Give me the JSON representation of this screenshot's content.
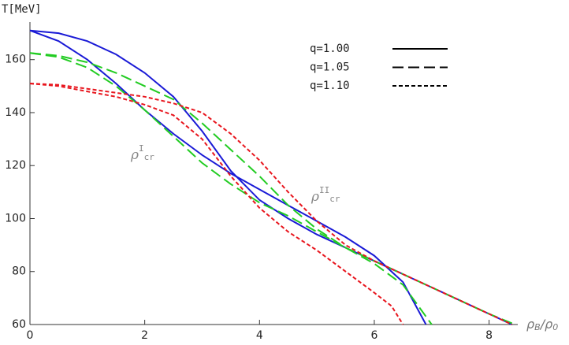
{
  "chart_data": {
    "type": "line",
    "y_label": "T[MeV]",
    "x_label": {
      "base": "ρ",
      "sub": "B",
      "mid": "/ρ",
      "sub2": "0"
    },
    "xlim": [
      0,
      8.5
    ],
    "ylim": [
      60,
      173
    ],
    "xticks": [
      0,
      2,
      4,
      6,
      8
    ],
    "yticks": [
      60,
      80,
      100,
      120,
      140,
      160
    ],
    "legend_color": "#000000",
    "annotations": [
      {
        "base": "ρ",
        "sup": "I",
        "sub": "cr"
      },
      {
        "base": "ρ",
        "sup": "II",
        "sub": "cr"
      }
    ],
    "series": [
      {
        "name": "q=1.00",
        "color": "#1a1ad6",
        "dash": "solid",
        "lines": [
          {
            "x": [
              0,
              0.5,
              1,
              1.5,
              2,
              2.5,
              3,
              3.5,
              4,
              4.5,
              5,
              5.5,
              6,
              6.5,
              6.9
            ],
            "values": [
              171,
              167,
              160,
              151,
              141,
              132,
              124,
              117,
              111,
              105,
              99,
              93,
              86,
              76,
              60
            ]
          },
          {
            "x": [
              0,
              0.5,
              1,
              1.5,
              2,
              2.5,
              3,
              3.5,
              4,
              4.5,
              5,
              5.5,
              6,
              6.5,
              7,
              7.5,
              8,
              8.4
            ],
            "values": [
              171,
              170,
              167,
              162,
              155,
              146,
              133,
              118,
              107,
              100,
              94,
              89,
              84,
              79,
              74,
              69,
              64,
              60
            ]
          }
        ]
      },
      {
        "name": "q=1.05",
        "color": "#22cc22",
        "dash": "long",
        "lines": [
          {
            "x": [
              0,
              0.5,
              1,
              1.5,
              2,
              2.5,
              3,
              3.5,
              4,
              4.5,
              5,
              5.5,
              6,
              6.5,
              7
            ],
            "values": [
              162.5,
              161,
              157,
              150,
              141,
              131,
              121,
              113,
              106,
              101,
              95,
              89,
              83,
              75,
              60
            ]
          },
          {
            "x": [
              0,
              0.5,
              1,
              1.5,
              2,
              2.5,
              3,
              3.5,
              4,
              4.5,
              5,
              5.5,
              6,
              6.5,
              7,
              7.5,
              8,
              8.45
            ],
            "values": [
              162.5,
              161.5,
              159,
              155,
              150,
              145,
              136,
              126,
              116,
              105,
              96,
              89,
              84,
              79,
              74,
              69,
              64,
              60
            ]
          }
        ]
      },
      {
        "name": "q=1.10",
        "color": "#e8161e",
        "dash": "short",
        "lines": [
          {
            "x": [
              0,
              0.5,
              1,
              1.5,
              2,
              2.5,
              3,
              3.5,
              4,
              4.5,
              5,
              5.5,
              6,
              6.3,
              6.5
            ],
            "values": [
              151,
              150,
              148,
              146,
              143,
              139,
              130,
              116,
              104,
              95,
              88,
              80,
              72,
              67,
              60
            ]
          },
          {
            "x": [
              0,
              0.5,
              1,
              1.5,
              2,
              2.5,
              3,
              3.5,
              4,
              4.5,
              5,
              5.5,
              6,
              6.5,
              7,
              7.5,
              8,
              8.4
            ],
            "values": [
              151,
              150.5,
              149,
              147.5,
              146,
              143.5,
              140,
              132,
              122,
              110,
              99,
              90,
              84,
              79,
              74,
              69,
              64,
              60
            ]
          }
        ]
      }
    ]
  }
}
